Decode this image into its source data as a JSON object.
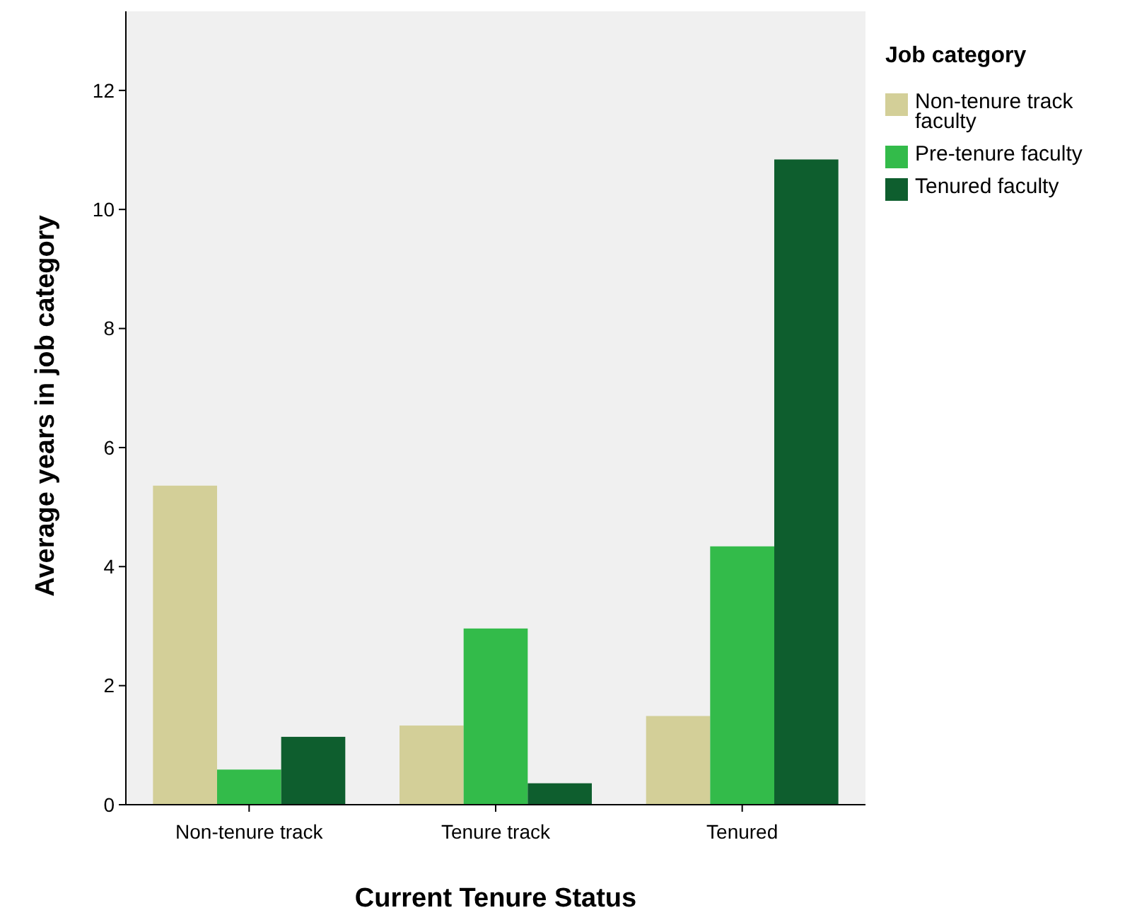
{
  "chart_data": {
    "type": "bar",
    "xlabel": "Current Tenure Status",
    "ylabel": "Average years in job category",
    "legend_title": "Job category",
    "categories": [
      "Non-tenure track",
      "Tenure track",
      "Tenured"
    ],
    "series": [
      {
        "name": "Non-tenure track faculty",
        "color": "#d3cf98",
        "values": [
          5.36,
          1.33,
          1.49
        ]
      },
      {
        "name": "Pre-tenure faculty",
        "color": "#33bb4a",
        "values": [
          0.59,
          2.96,
          4.34
        ]
      },
      {
        "name": "Tenured faculty",
        "color": "#0e5e2e",
        "values": [
          1.14,
          0.36,
          10.84
        ]
      }
    ],
    "ylim": [
      0,
      13.4
    ],
    "yticks": [
      0,
      2,
      4,
      6,
      8,
      10,
      12
    ],
    "grid": false,
    "legend": "right"
  }
}
